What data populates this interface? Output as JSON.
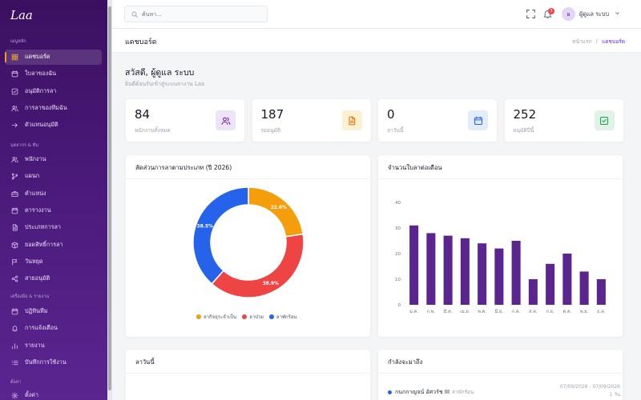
{
  "app": {
    "logo": "Laa"
  },
  "sidebar": {
    "sections": [
      {
        "label": "เมนูหลัก",
        "items": [
          {
            "label": "แดชบอร์ด",
            "icon": "grid-icon",
            "active": true
          },
          {
            "label": "ใบลาของฉัน",
            "icon": "calendar-icon"
          },
          {
            "label": "อนุมัติการลา",
            "icon": "check-square-icon"
          },
          {
            "label": "การลาของทีมฉัน",
            "icon": "users-icon"
          },
          {
            "label": "ตัวแทนอนุมัติ",
            "icon": "arrow-right-icon"
          }
        ]
      },
      {
        "label": "บุคลากร & ทีม",
        "items": [
          {
            "label": "พนักงาน",
            "icon": "users-icon"
          },
          {
            "label": "แผนก",
            "icon": "branch-icon"
          },
          {
            "label": "ตำแหน่ง",
            "icon": "briefcase-icon"
          },
          {
            "label": "ตารางงาน",
            "icon": "calendar-icon"
          },
          {
            "label": "ประเภทการลา",
            "icon": "document-icon"
          },
          {
            "label": "ยอดสิทธิ์การลา",
            "icon": "box-icon"
          },
          {
            "label": "วันหยุด",
            "icon": "flag-icon"
          },
          {
            "label": "สายอนุมัติ",
            "icon": "share-icon"
          }
        ]
      },
      {
        "label": "เครื่องมือ & รายงาน",
        "items": [
          {
            "label": "ปฏิทินทีม",
            "icon": "calendar-icon"
          },
          {
            "label": "การแจ้งเตือน",
            "icon": "bell-icon"
          },
          {
            "label": "รายงาน",
            "icon": "bar-chart-icon"
          },
          {
            "label": "บันทึกการใช้งาน",
            "icon": "list-icon"
          }
        ]
      },
      {
        "label": "ตั้งค่า",
        "items": [
          {
            "label": "ตั้งค่า",
            "icon": "gear-icon"
          }
        ]
      }
    ]
  },
  "topbar": {
    "search_placeholder": "ค้นหา...",
    "notification_count": "3",
    "user_initial": "ผ",
    "user_name": "ผู้ดูแล ระบบ"
  },
  "page": {
    "title": "แดชบอร์ด",
    "breadcrumb": {
      "home": "หน้าแรก",
      "separator": "/",
      "current": "แดชบอร์ด"
    },
    "greeting": "สวัสดี, ผู้ดูแล ระบบ",
    "greeting_sub": "ยินดีต้อนรับเข้าสู่ระบบลางาน Laa"
  },
  "stats": [
    {
      "value": "84",
      "label": "พนักงานทั้งหมด",
      "icon": "users-icon",
      "bg": "#ede4f7",
      "fg": "#6b21a8"
    },
    {
      "value": "187",
      "label": "รออนุมัติ",
      "icon": "document-icon",
      "bg": "#fdf0d3",
      "fg": "#d97706"
    },
    {
      "value": "0",
      "label": "ลาวันนี้",
      "icon": "calendar-icon",
      "bg": "#e2ecfb",
      "fg": "#2563eb"
    },
    {
      "value": "252",
      "label": "อนุมัติปีนี้",
      "icon": "check-square-icon",
      "bg": "#e1f3e6",
      "fg": "#16a34a"
    }
  ],
  "charts": {
    "donut_title": "สัดส่วนการลาตามประเภท (ปี 2026)",
    "bar_title": "จำนวนใบลาต่อเดือน"
  },
  "chart_data": [
    {
      "type": "pie",
      "title": "สัดส่วนการลาตามประเภท (ปี 2026)",
      "categories": [
        "ลากิจธุระจำเป็น",
        "ลาป่วย",
        "ลาพักร้อน"
      ],
      "values": [
        22.6,
        38.9,
        38.5
      ],
      "labels": [
        "22.6%",
        "38.9%",
        "38.5%"
      ],
      "colors": [
        "#f59e0b",
        "#ef4444",
        "#2563eb"
      ],
      "legend": "bottom"
    },
    {
      "type": "bar",
      "title": "จำนวนใบลาต่อเดือน",
      "categories": [
        "ม.ค.",
        "ก.พ.",
        "มี.ค.",
        "เม.ย.",
        "พ.ค.",
        "มิ.ย.",
        "ก.ค.",
        "ส.ค.",
        "ก.ย.",
        "ต.ค.",
        "พ.ย.",
        "ธ.ค."
      ],
      "values": [
        31,
        28,
        27,
        26,
        24,
        22,
        25,
        10,
        16,
        20,
        13,
        10
      ],
      "ylim": [
        0,
        40
      ],
      "yticks": [
        0,
        10,
        20,
        30,
        40
      ],
      "color": "#5b2590",
      "grid": false
    }
  ],
  "bottom": {
    "today_title": "ลาวันนี้",
    "upcoming_title": "กำลังจะมาถึง",
    "upcoming": [
      {
        "name": "กนกกาญจน์ อัศวรัช III",
        "type": "ลาพักร้อน",
        "dates": "07/09/2026 - 07/09/2026",
        "days": "1 วัน"
      }
    ]
  }
}
